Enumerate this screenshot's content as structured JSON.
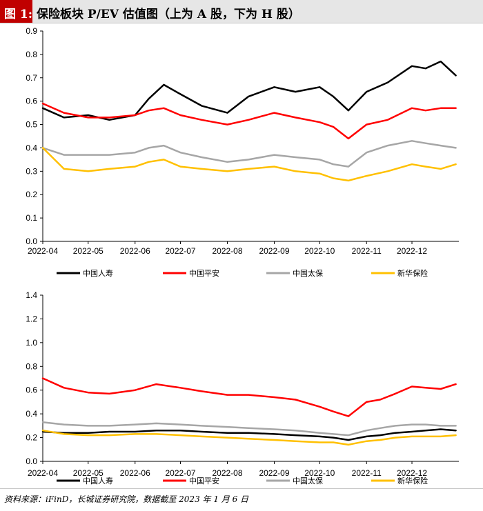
{
  "title": {
    "label": "图 1:",
    "text": "保险板块 P/EV 估值图（上为 A 股，下为 H 股）"
  },
  "source": "资料来源：iFinD，长城证券研究院，数据截至 2023 年 1 月 6 日",
  "colors": {
    "中国人寿": "#000000",
    "中国平安": "#ff0000",
    "中国太保": "#a6a6a6",
    "新华保险": "#ffc000"
  },
  "chart_data": [
    {
      "type": "line",
      "market": "A股",
      "x_ticks": [
        "2022-04",
        "2022-05",
        "2022-06",
        "2022-07",
        "2022-08",
        "2022-09",
        "2022-10",
        "2022-11",
        "2022-12"
      ],
      "y_ticks": [
        "0.0",
        "0.1",
        "0.2",
        "0.3",
        "0.4",
        "0.5",
        "0.6",
        "0.7",
        "0.8",
        "0.9"
      ],
      "ylim": [
        0,
        0.9
      ],
      "legend_position": "bottom",
      "x": [
        "2022-04-01",
        "2022-04-15",
        "2022-05-01",
        "2022-05-15",
        "2022-06-01",
        "2022-06-10",
        "2022-06-20",
        "2022-07-01",
        "2022-07-15",
        "2022-08-01",
        "2022-08-15",
        "2022-09-01",
        "2022-09-15",
        "2022-10-01",
        "2022-10-10",
        "2022-10-20",
        "2022-11-01",
        "2022-11-15",
        "2022-12-01",
        "2022-12-10",
        "2022-12-20",
        "2022-12-30"
      ],
      "series": [
        {
          "name": "中国人寿",
          "values": [
            0.57,
            0.53,
            0.54,
            0.52,
            0.54,
            0.61,
            0.67,
            0.63,
            0.58,
            0.55,
            0.62,
            0.66,
            0.64,
            0.66,
            0.62,
            0.56,
            0.64,
            0.68,
            0.75,
            0.74,
            0.77,
            0.71
          ]
        },
        {
          "name": "中国平安",
          "values": [
            0.59,
            0.55,
            0.53,
            0.53,
            0.54,
            0.56,
            0.57,
            0.54,
            0.52,
            0.5,
            0.52,
            0.55,
            0.53,
            0.51,
            0.49,
            0.44,
            0.5,
            0.52,
            0.57,
            0.56,
            0.57,
            0.57
          ]
        },
        {
          "name": "中国太保",
          "values": [
            0.4,
            0.37,
            0.37,
            0.37,
            0.38,
            0.4,
            0.41,
            0.38,
            0.36,
            0.34,
            0.35,
            0.37,
            0.36,
            0.35,
            0.33,
            0.32,
            0.38,
            0.41,
            0.43,
            0.42,
            0.41,
            0.4
          ]
        },
        {
          "name": "新华保险",
          "values": [
            0.4,
            0.31,
            0.3,
            0.31,
            0.32,
            0.34,
            0.35,
            0.32,
            0.31,
            0.3,
            0.31,
            0.32,
            0.3,
            0.29,
            0.27,
            0.26,
            0.28,
            0.3,
            0.33,
            0.32,
            0.31,
            0.33
          ]
        }
      ]
    },
    {
      "type": "line",
      "market": "H股",
      "x_ticks": [
        "2022-04",
        "2022-05",
        "2022-06",
        "2022-07",
        "2022-08",
        "2022-09",
        "2022-10",
        "2022-11",
        "2022-12"
      ],
      "y_ticks": [
        "0.0",
        "0.2",
        "0.4",
        "0.6",
        "0.8",
        "1.0",
        "1.2",
        "1.4"
      ],
      "ylim": [
        0,
        1.4
      ],
      "legend_position": "bottom",
      "x": [
        "2022-04-01",
        "2022-04-15",
        "2022-05-01",
        "2022-05-15",
        "2022-06-01",
        "2022-06-15",
        "2022-07-01",
        "2022-07-15",
        "2022-08-01",
        "2022-08-15",
        "2022-09-01",
        "2022-09-15",
        "2022-10-01",
        "2022-10-10",
        "2022-10-20",
        "2022-11-01",
        "2022-11-10",
        "2022-11-20",
        "2022-12-01",
        "2022-12-10",
        "2022-12-20",
        "2022-12-30"
      ],
      "series": [
        {
          "name": "中国人寿",
          "values": [
            0.25,
            0.24,
            0.24,
            0.25,
            0.25,
            0.26,
            0.26,
            0.25,
            0.24,
            0.24,
            0.23,
            0.22,
            0.21,
            0.2,
            0.18,
            0.21,
            0.22,
            0.24,
            0.25,
            0.26,
            0.27,
            0.26
          ]
        },
        {
          "name": "中国平安",
          "values": [
            0.7,
            0.62,
            0.58,
            0.57,
            0.6,
            0.65,
            0.62,
            0.59,
            0.56,
            0.56,
            0.54,
            0.52,
            0.46,
            0.42,
            0.38,
            0.5,
            0.52,
            0.57,
            0.63,
            0.62,
            0.61,
            0.65
          ]
        },
        {
          "name": "中国太保",
          "values": [
            0.33,
            0.31,
            0.3,
            0.3,
            0.31,
            0.32,
            0.31,
            0.3,
            0.29,
            0.28,
            0.27,
            0.26,
            0.24,
            0.23,
            0.22,
            0.26,
            0.28,
            0.3,
            0.31,
            0.31,
            0.3,
            0.3
          ]
        },
        {
          "name": "新华保险",
          "values": [
            0.26,
            0.23,
            0.22,
            0.22,
            0.23,
            0.23,
            0.22,
            0.21,
            0.2,
            0.19,
            0.18,
            0.17,
            0.16,
            0.16,
            0.14,
            0.17,
            0.18,
            0.2,
            0.21,
            0.21,
            0.21,
            0.22
          ]
        }
      ]
    }
  ]
}
